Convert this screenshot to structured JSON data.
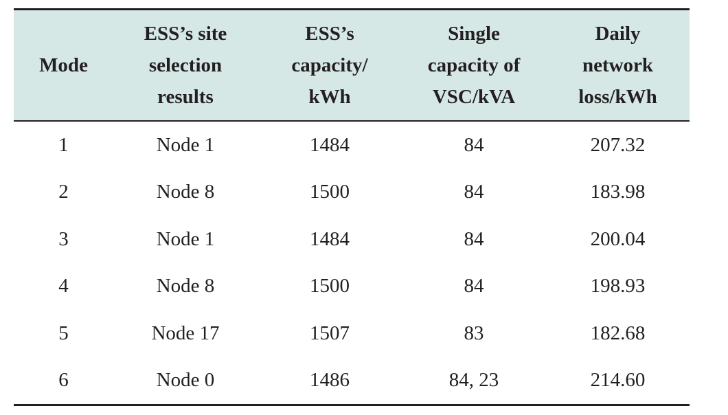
{
  "table": {
    "headers": [
      {
        "key": "mode",
        "lines": [
          "Mode"
        ]
      },
      {
        "key": "site",
        "lines": [
          "ESS’s site",
          "selection",
          "results"
        ]
      },
      {
        "key": "capacity",
        "lines": [
          "ESS’s",
          "capacity/",
          "kWh"
        ]
      },
      {
        "key": "vsc",
        "lines": [
          "Single",
          "capacity of",
          "VSC/kVA"
        ]
      },
      {
        "key": "loss",
        "lines": [
          "Daily",
          "network",
          "loss/kWh"
        ]
      }
    ],
    "rows": [
      {
        "mode": "1",
        "site": "Node 1",
        "capacity": "1484",
        "vsc": "84",
        "loss": "207.32"
      },
      {
        "mode": "2",
        "site": "Node 8",
        "capacity": "1500",
        "vsc": "84",
        "loss": "183.98"
      },
      {
        "mode": "3",
        "site": "Node 1",
        "capacity": "1484",
        "vsc": "84",
        "loss": "200.04"
      },
      {
        "mode": "4",
        "site": "Node 8",
        "capacity": "1500",
        "vsc": "84",
        "loss": "198.93"
      },
      {
        "mode": "5",
        "site": "Node 17",
        "capacity": "1507",
        "vsc": "83",
        "loss": "182.68"
      },
      {
        "mode": "6",
        "site": "Node 0",
        "capacity": "1486",
        "vsc": "84, 23",
        "loss": "214.60"
      }
    ]
  },
  "colors": {
    "header_bg": "#d6e8e6",
    "text": "#231f20",
    "rule": "#231f20"
  }
}
